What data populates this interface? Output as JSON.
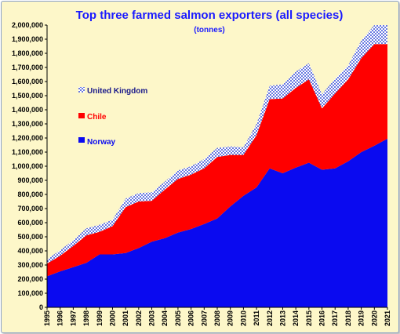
{
  "chart_data": {
    "type": "area",
    "stacked": true,
    "title": "Top three farmed salmon exporters (all species)",
    "subtitle": "(tonnes)",
    "xlabel": "",
    "ylabel": "",
    "ylim": [
      0,
      2000000
    ],
    "ytick_step": 100000,
    "ytick_labels": [
      "0",
      "100,000",
      "200,000",
      "300,000",
      "400,000",
      "500,000",
      "600,000",
      "700,000",
      "800,000",
      "900,000",
      "1,000,000",
      "1,100,000",
      "1,200,000",
      "1,300,000",
      "1,400,000",
      "1,500,000",
      "1,600,000",
      "1,700,000",
      "1,800,000",
      "1,900,000",
      "2,000,000"
    ],
    "grid": false,
    "legend_position": "left",
    "x": [
      "1995",
      "1996",
      "1997",
      "1998",
      "1999",
      "2000",
      "2001",
      "2002",
      "2003",
      "2004",
      "2005",
      "2006",
      "2007",
      "2008",
      "2009",
      "2010",
      "2011",
      "2012",
      "2013",
      "2014",
      "2015",
      "2016",
      "2017",
      "2018",
      "2019",
      "2020",
      "2021"
    ],
    "series": [
      {
        "name": "Norway",
        "color": "#0a0af0",
        "values": [
          220000,
          255000,
          285000,
          315000,
          375000,
          375000,
          385000,
          420000,
          465000,
          490000,
          530000,
          555000,
          590000,
          630000,
          715000,
          790000,
          850000,
          985000,
          950000,
          990000,
          1025000,
          975000,
          985000,
          1035000,
          1100000,
          1145000,
          1195000
        ]
      },
      {
        "name": "Chile",
        "color": "#ff0000",
        "values": [
          90000,
          110000,
          150000,
          195000,
          160000,
          200000,
          325000,
          330000,
          290000,
          345000,
          380000,
          385000,
          395000,
          435000,
          365000,
          290000,
          370000,
          490000,
          530000,
          565000,
          590000,
          435000,
          530000,
          580000,
          665000,
          720000,
          670000
        ]
      },
      {
        "name": "United Kingdom",
        "color": "#6a7fe0",
        "pattern": "dotted",
        "values": [
          30000,
          40000,
          40000,
          50000,
          50000,
          45000,
          60000,
          60000,
          60000,
          55000,
          60000,
          60000,
          65000,
          65000,
          60000,
          55000,
          80000,
          95000,
          100000,
          115000,
          115000,
          100000,
          105000,
          100000,
          125000,
          135000,
          135000
        ]
      }
    ],
    "legend": [
      {
        "label": "United Kingdom",
        "color": "#1a1a8a",
        "swatch": "dotted"
      },
      {
        "label": "Chile",
        "color": "#ff0000",
        "swatch": "solid"
      },
      {
        "label": "Norway",
        "color": "#0a0af0",
        "swatch": "solid"
      }
    ]
  }
}
